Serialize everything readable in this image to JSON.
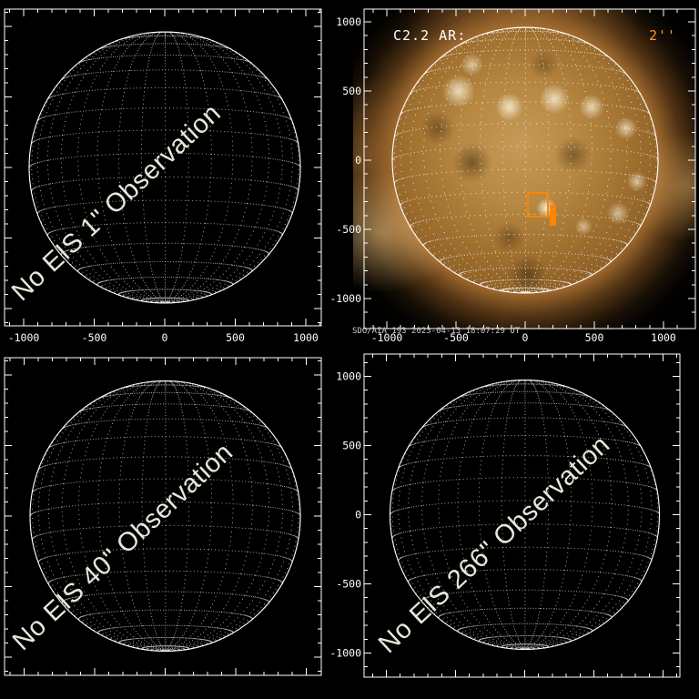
{
  "colors": {
    "annotation_orange": "#fb8508",
    "scale_label_orange": "#ff9226",
    "axis_white": "#ffffff",
    "watermark_cream": "#e9e6da"
  },
  "top_left": {
    "watermark": "No EIS 1\" Observation",
    "x_ticks": [
      "-1000",
      "-500",
      "0",
      "500",
      "1000"
    ]
  },
  "top_right": {
    "ar_label": "C2.2 AR:",
    "scale_label": "2''",
    "caption": "SDO/AIA 193  2023-04-13  18:07:29 UT",
    "x_ticks": [
      "-1000",
      "-500",
      "0",
      "500",
      "1000"
    ],
    "y_ticks": [
      "1000",
      "500",
      "0",
      "-500",
      "-1000"
    ]
  },
  "bottom_left": {
    "watermark": "No EIS 40\" Observation"
  },
  "bottom_right": {
    "watermark": "No EIS 266\" Observation",
    "y_ticks": [
      "1000",
      "500",
      "0",
      "-500",
      "-1000"
    ]
  }
}
